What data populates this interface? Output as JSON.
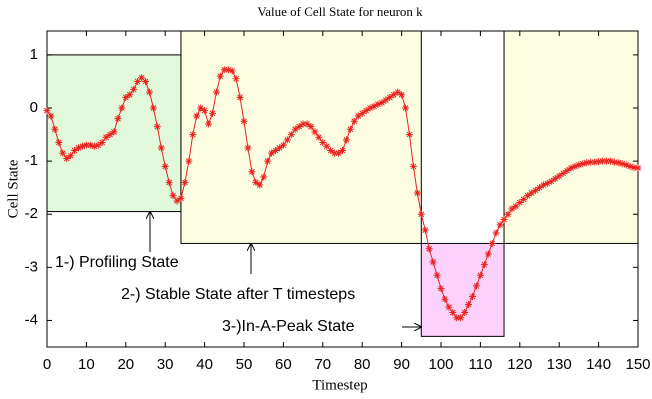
{
  "chart_data": {
    "type": "line",
    "title": "Value  of Cell State for neuron k",
    "x_label": "Timestep",
    "y_label": "Cell State",
    "color": "#e8231f",
    "x": [
      0,
      1,
      2,
      3,
      4,
      5,
      6,
      7,
      8,
      9,
      10,
      11,
      12,
      13,
      14,
      15,
      16,
      17,
      18,
      19,
      20,
      21,
      22,
      23,
      24,
      25,
      26,
      27,
      28,
      29,
      30,
      31,
      32,
      33,
      34,
      35,
      36,
      37,
      38,
      39,
      40,
      41,
      42,
      43,
      44,
      45,
      46,
      47,
      48,
      49,
      50,
      51,
      52,
      53,
      54,
      55,
      56,
      57,
      58,
      59,
      60,
      61,
      62,
      63,
      64,
      65,
      66,
      67,
      68,
      69,
      70,
      71,
      72,
      73,
      74,
      75,
      76,
      77,
      78,
      79,
      80,
      81,
      82,
      83,
      84,
      85,
      86,
      87,
      88,
      89,
      90,
      91,
      92,
      93,
      94,
      95,
      96,
      97,
      98,
      99,
      100,
      101,
      102,
      103,
      104,
      105,
      106,
      107,
      108,
      109,
      110,
      111,
      112,
      113,
      114,
      115,
      116,
      117,
      118,
      119,
      120,
      121,
      122,
      123,
      124,
      125,
      126,
      127,
      128,
      129,
      130,
      131,
      132,
      133,
      134,
      135,
      136,
      137,
      138,
      139,
      140,
      141,
      142,
      143,
      144,
      145,
      146,
      147,
      148,
      149,
      150
    ],
    "values": [
      -0.05,
      -0.15,
      -0.4,
      -0.65,
      -0.85,
      -0.95,
      -0.9,
      -0.8,
      -0.75,
      -0.72,
      -0.7,
      -0.7,
      -0.72,
      -0.7,
      -0.65,
      -0.55,
      -0.5,
      -0.45,
      -0.2,
      0.0,
      0.2,
      0.25,
      0.35,
      0.5,
      0.57,
      0.5,
      0.3,
      0.0,
      -0.35,
      -0.75,
      -1.1,
      -1.4,
      -1.65,
      -1.75,
      -1.7,
      -1.4,
      -1.0,
      -0.5,
      -0.15,
      0.0,
      -0.05,
      -0.3,
      -0.1,
      0.3,
      0.6,
      0.72,
      0.72,
      0.7,
      0.55,
      0.2,
      -0.25,
      -0.75,
      -1.2,
      -1.4,
      -1.45,
      -1.3,
      -1.0,
      -0.85,
      -0.8,
      -0.75,
      -0.7,
      -0.6,
      -0.5,
      -0.4,
      -0.35,
      -0.3,
      -0.3,
      -0.35,
      -0.45,
      -0.55,
      -0.65,
      -0.72,
      -0.8,
      -0.85,
      -0.85,
      -0.8,
      -0.6,
      -0.4,
      -0.25,
      -0.15,
      -0.1,
      -0.05,
      0.0,
      0.03,
      0.07,
      0.1,
      0.15,
      0.2,
      0.25,
      0.3,
      0.25,
      0.0,
      -0.5,
      -1.1,
      -1.6,
      -2.0,
      -2.3,
      -2.65,
      -2.9,
      -3.15,
      -3.4,
      -3.6,
      -3.75,
      -3.85,
      -3.95,
      -3.95,
      -3.85,
      -3.7,
      -3.55,
      -3.35,
      -3.15,
      -2.95,
      -2.75,
      -2.55,
      -2.35,
      -2.2,
      -2.1,
      -2.0,
      -1.9,
      -1.85,
      -1.78,
      -1.72,
      -1.65,
      -1.6,
      -1.55,
      -1.5,
      -1.45,
      -1.42,
      -1.38,
      -1.33,
      -1.28,
      -1.23,
      -1.18,
      -1.13,
      -1.1,
      -1.07,
      -1.05,
      -1.03,
      -1.02,
      -1.02,
      -1.01,
      -1.0,
      -1.0,
      -1.0,
      -1.02,
      -1.03,
      -1.05,
      -1.07,
      -1.1,
      -1.12,
      -1.13
    ],
    "xlim": [
      0,
      150
    ],
    "xticks": [
      0,
      10,
      20,
      30,
      40,
      50,
      60,
      70,
      80,
      90,
      100,
      110,
      120,
      130,
      140,
      150
    ],
    "ylim": [
      -4.5,
      1.45
    ],
    "yticks": [
      -4,
      -3,
      -2,
      -1,
      0,
      1
    ],
    "regions": [
      {
        "x": [
          0,
          34
        ],
        "y": [
          -1.95,
          1.0
        ],
        "color": "#e2f8da"
      },
      {
        "x": [
          34,
          95
        ],
        "y": [
          -2.55,
          1.45
        ],
        "color": "#fdfde2"
      },
      {
        "x": [
          95,
          116
        ],
        "y": [
          -4.3,
          -2.55
        ],
        "color": "#fcd2fc"
      },
      {
        "x": [
          116,
          150
        ],
        "y": [
          -2.55,
          1.45
        ],
        "color": "#fdfde2"
      }
    ],
    "annotations": [
      {
        "text": "1-) Profiling State"
      },
      {
        "text": "2-) Stable State after T timesteps"
      },
      {
        "text": "3-)In-A-Peak State"
      }
    ]
  }
}
